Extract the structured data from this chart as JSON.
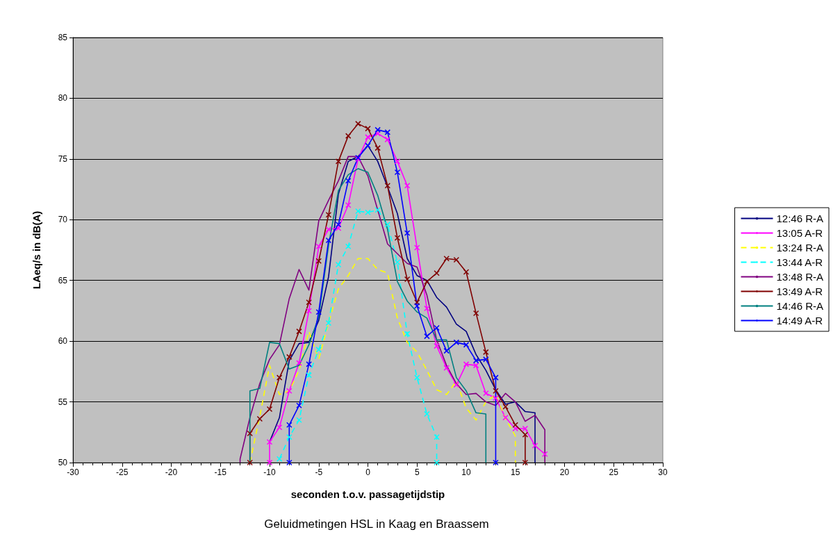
{
  "chart_data": {
    "type": "line",
    "title": "Geluidmetingen HSL in Kaag en Braassem",
    "xlabel": "seconden t.o.v. passagetijdstip",
    "ylabel": "LAeq/s in dB(A)",
    "xlim": [
      -30,
      30
    ],
    "xticks": [
      -30,
      -25,
      -20,
      -15,
      -10,
      -5,
      0,
      5,
      10,
      15,
      20,
      25,
      30
    ],
    "ylim": [
      50,
      85
    ],
    "yticks": [
      50,
      55,
      60,
      65,
      70,
      75,
      80,
      85
    ],
    "grid": "y",
    "legend": "right",
    "line_style": "solid",
    "marker": "none",
    "series": [
      {
        "name": "12:46 R-A",
        "color": "#000080",
        "x": [
          -10,
          -9,
          -8,
          -7,
          -6,
          -5,
          -4,
          -3,
          -2,
          -1,
          0,
          1,
          2,
          3,
          4,
          5,
          6,
          7,
          8,
          9,
          10,
          11,
          12,
          13,
          14,
          15,
          16,
          17,
          17
        ],
        "values": [
          51.7,
          53.7,
          58.4,
          59.8,
          59.9,
          61.7,
          65.3,
          72.1,
          74.8,
          75.2,
          76.1,
          74.8,
          72.7,
          70.5,
          66.8,
          65.4,
          65.0,
          63.6,
          62.8,
          61.4,
          60.8,
          58.9,
          57.6,
          56.0,
          54.8,
          55.0,
          54.2,
          54.1,
          50
        ]
      },
      {
        "name": "13:05 A-R",
        "color": "#ff00ff",
        "marker": "cross",
        "x": [
          -10,
          -10,
          -9,
          -8,
          -7,
          -6,
          -5,
          -4,
          -3,
          -2,
          -1,
          0,
          1,
          2,
          3,
          4,
          5,
          6,
          7,
          8,
          9,
          10,
          11,
          12,
          13,
          14,
          15,
          16,
          17,
          18
        ],
        "values": [
          50,
          51.7,
          52.9,
          55.9,
          58.2,
          62.5,
          67.8,
          69.2,
          69.3,
          71.2,
          75.0,
          76.8,
          77.1,
          76.6,
          74.8,
          72.8,
          67.7,
          62.7,
          59.6,
          57.8,
          56.4,
          58.1,
          58.0,
          55.7,
          55.3,
          53.7,
          52.8,
          52.8,
          51.4,
          50.7
        ]
      },
      {
        "name": "13:24 R-A",
        "color": "#ffff00",
        "line_style": "dashed",
        "x": [
          -12,
          -11,
          -10,
          -9,
          -8,
          -7,
          -6,
          -5,
          -4,
          -3,
          -2,
          -1,
          0,
          1,
          2,
          3,
          4,
          5,
          6,
          7,
          8,
          9,
          10,
          11,
          12,
          13,
          14,
          15,
          15
        ],
        "values": [
          50,
          53.8,
          58.0,
          55.6,
          55.9,
          57.6,
          60.8,
          58.5,
          61.5,
          64.3,
          65.4,
          66.8,
          66.8,
          65.9,
          65.6,
          61.9,
          59.9,
          59.1,
          57.6,
          56.0,
          55.6,
          56.7,
          54.5,
          53.5,
          55.0,
          55.6,
          53.6,
          52.2,
          50
        ]
      },
      {
        "name": "13:44 A-R",
        "color": "#00ffff",
        "marker": "cross",
        "line_style": "dashed",
        "x": [
          -9,
          -8,
          -7,
          -6,
          -5,
          -4,
          -3,
          -2,
          -1,
          0,
          1,
          2,
          3,
          4,
          5,
          6,
          7,
          7
        ],
        "values": [
          50.3,
          52.1,
          53.5,
          57.2,
          59.3,
          61.5,
          66.3,
          67.8,
          70.7,
          70.6,
          70.8,
          69.6,
          66.5,
          60.6,
          57.0,
          54.0,
          52.1,
          50
        ]
      },
      {
        "name": "13:48 R-A",
        "color": "#800080",
        "x": [
          -13,
          -13,
          -12,
          -11,
          -10,
          -9,
          -8,
          -7,
          -6,
          -5,
          -4,
          -3,
          -2,
          -1,
          0,
          1,
          2,
          3,
          4,
          5,
          6,
          7,
          8,
          9,
          10,
          11,
          12,
          13,
          14,
          15,
          16,
          17,
          18,
          18
        ],
        "values": [
          50,
          50.3,
          53.7,
          56.5,
          58.5,
          59.7,
          63.5,
          65.9,
          64.2,
          69.9,
          71.6,
          73.2,
          75.2,
          75.2,
          73.6,
          70.8,
          68.0,
          67.2,
          66.4,
          66.1,
          63.8,
          60.1,
          58.0,
          56.5,
          55.6,
          55.7,
          55.0,
          54.7,
          55.7,
          55.0,
          53.4,
          53.9,
          52.7,
          50
        ]
      },
      {
        "name": "13:49 A-R",
        "color": "#800000",
        "marker": "cross",
        "x": [
          -12,
          -12,
          -11,
          -10,
          -9,
          -8,
          -7,
          -6,
          -5,
          -4,
          -3,
          -2,
          -1,
          0,
          1,
          2,
          3,
          4,
          5,
          6,
          7,
          8,
          9,
          10,
          11,
          12,
          13,
          14,
          15,
          16,
          16
        ],
        "values": [
          50,
          52.4,
          53.6,
          54.4,
          57.0,
          58.7,
          60.8,
          63.2,
          66.6,
          70.4,
          74.8,
          76.9,
          77.9,
          77.5,
          75.9,
          72.8,
          68.5,
          65.1,
          63.2,
          64.9,
          65.6,
          66.8,
          66.7,
          65.7,
          62.3,
          59.1,
          55.9,
          54.6,
          53.1,
          52.3,
          50
        ]
      },
      {
        "name": "14:46 R-A",
        "color": "#008080",
        "x": [
          -12,
          -12,
          -11,
          -10,
          -9,
          -8,
          -7,
          -6,
          -5,
          -4,
          -3,
          -2,
          -1,
          0,
          1,
          2,
          3,
          4,
          5,
          6,
          7,
          8,
          9,
          10,
          11,
          12,
          12
        ],
        "values": [
          50,
          55.9,
          56.1,
          59.9,
          59.8,
          57.7,
          58.0,
          59.7,
          62.0,
          67.9,
          72.4,
          73.7,
          74.2,
          73.9,
          72.0,
          69.2,
          64.9,
          63.3,
          62.4,
          61.9,
          60.1,
          60.1,
          57.0,
          55.9,
          54.1,
          54.0,
          50
        ]
      },
      {
        "name": "14:49 A-R",
        "color": "#0000ff",
        "marker": "cross",
        "x": [
          -8,
          -8,
          -7,
          -6,
          -5,
          -4,
          -3,
          -2,
          -1,
          0,
          1,
          2,
          3,
          4,
          5,
          6,
          7,
          8,
          9,
          10,
          11,
          12,
          13,
          13
        ],
        "values": [
          50,
          53.1,
          54.7,
          58.1,
          62.4,
          68.3,
          69.6,
          73.2,
          75.1,
          76.1,
          77.4,
          77.2,
          73.9,
          68.9,
          62.9,
          60.4,
          61.1,
          59.2,
          59.9,
          59.7,
          58.4,
          58.5,
          57.0,
          50
        ]
      }
    ]
  }
}
